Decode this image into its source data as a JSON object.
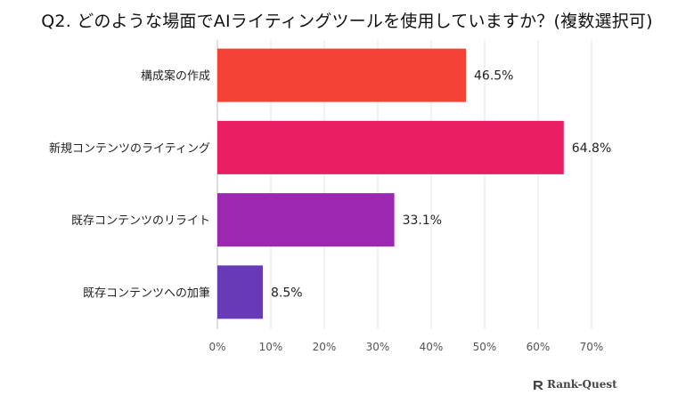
{
  "title": "Q2. どのような場面でAIライティングツールを使用していますか？(複数選択可)",
  "brand": "Rank-Quest",
  "chart_data": {
    "type": "bar",
    "orientation": "horizontal",
    "categories": [
      "構成案の作成",
      "新規コンテンツのライティング",
      "既存コンテンツのリライト",
      "既存コンテンツへの加筆"
    ],
    "values": [
      46.5,
      64.8,
      33.1,
      8.5
    ],
    "value_labels": [
      "46.5%",
      "64.8%",
      "33.1%",
      "8.5%"
    ],
    "bar_colors": [
      "#f44336",
      "#e91e63",
      "#9c27b0",
      "#673ab7"
    ],
    "xlim": [
      0,
      70
    ],
    "xticks": [
      "0%",
      "10%",
      "20%",
      "30%",
      "40%",
      "50%",
      "60%",
      "70%"
    ],
    "grid": true
  }
}
